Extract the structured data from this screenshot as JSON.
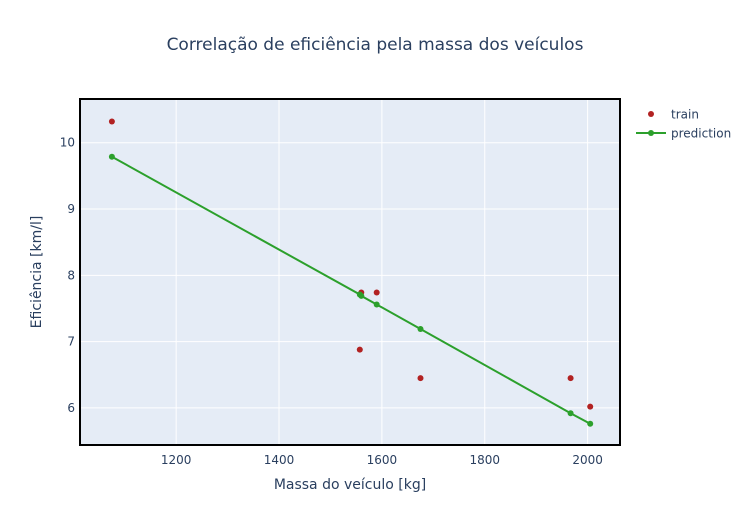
{
  "chart_data": {
    "type": "scatter",
    "title": "Correlação de eficiência pela massa dos veículos",
    "xlabel": "Massa do veículo [kg]",
    "ylabel": "Eficiência [km/l]",
    "xlim": [
      1013,
      2063
    ],
    "ylim": [
      5.44,
      10.66
    ],
    "xticks": [
      1200,
      1400,
      1600,
      1800,
      2000
    ],
    "yticks": [
      6,
      7,
      8,
      9,
      10
    ],
    "grid": true,
    "legend_position": "top-right",
    "series": [
      {
        "name": "train",
        "mode": "markers",
        "color": "#b22222",
        "x": [
          1075,
          1560,
          1590,
          1557,
          1675,
          1967,
          2005
        ],
        "y": [
          10.32,
          7.74,
          7.74,
          6.88,
          6.45,
          6.45,
          6.02
        ]
      },
      {
        "name": "prediction",
        "mode": "lines+markers",
        "color": "#2ca02c",
        "x": [
          1075,
          1557,
          1560,
          1590,
          1675,
          1967,
          2005
        ],
        "y": [
          9.79,
          7.71,
          7.69,
          7.56,
          7.19,
          5.92,
          5.76
        ]
      }
    ]
  },
  "colors": {
    "plot_background": "#e5ecf6",
    "grid": "#ffffff",
    "text": "#2a3f5f"
  }
}
